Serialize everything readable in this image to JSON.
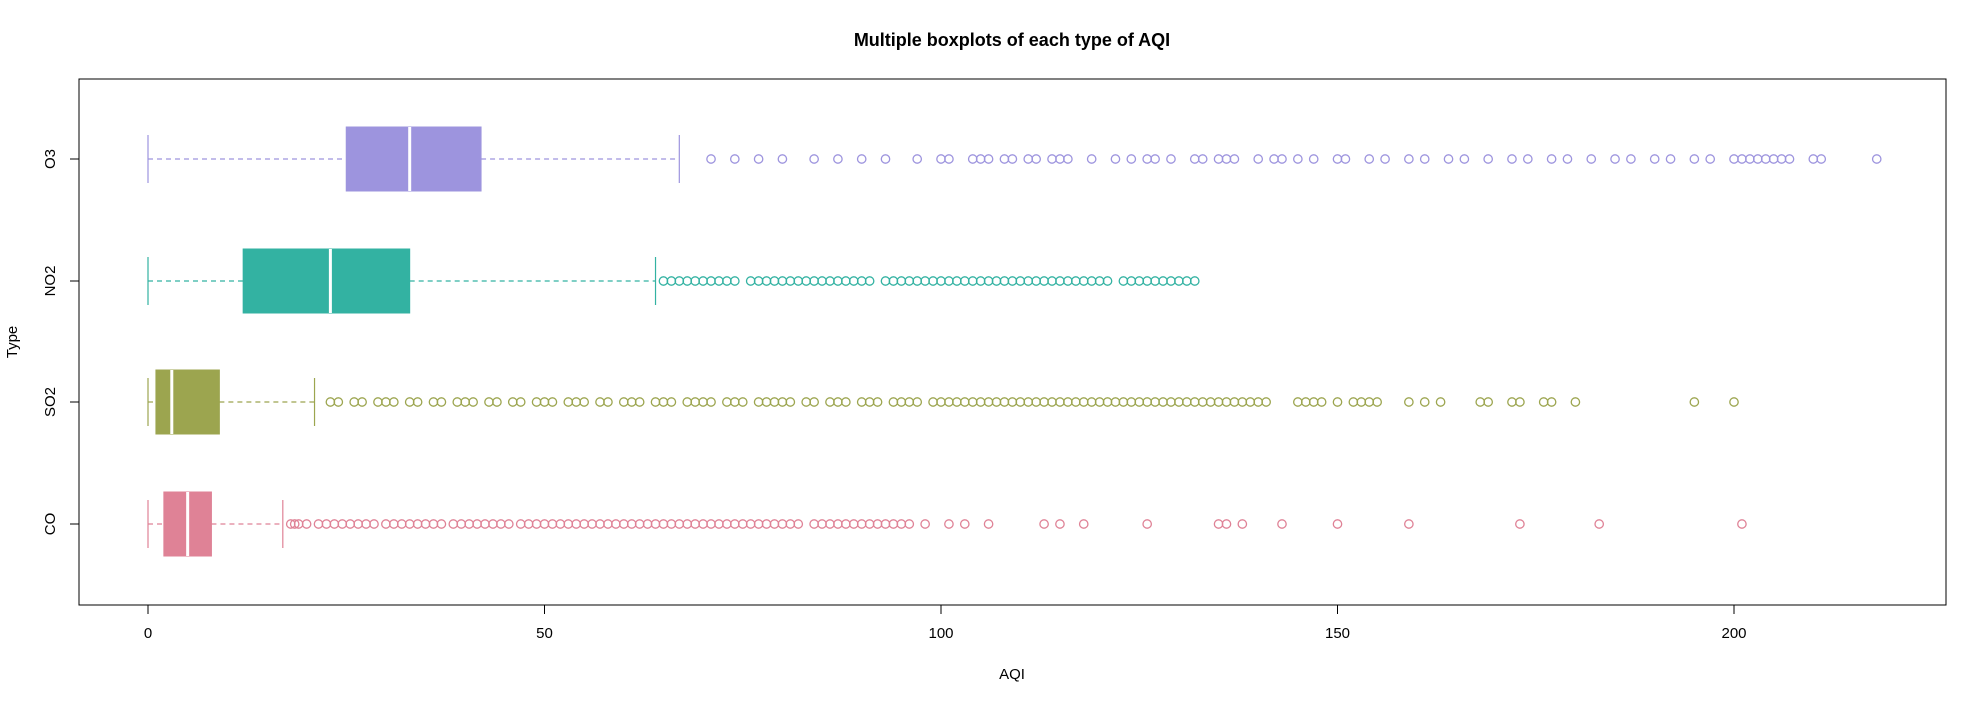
{
  "chart_data": {
    "type": "boxplot",
    "orientation": "horizontal",
    "title": "Multiple boxplots of each type of AQI",
    "xlabel": "AQI",
    "ylabel": "Type",
    "xlim": [
      -8.7,
      226.8
    ],
    "x_ticks": [
      0,
      50,
      100,
      150,
      200
    ],
    "grid": false,
    "categories": [
      "CO",
      "SO2",
      "NO2",
      "O3"
    ],
    "series": [
      {
        "name": "CO",
        "color": "#DF8296",
        "whisker_low": 0,
        "q1": 2,
        "median": 5,
        "q3": 8,
        "whisker_high": 17,
        "outliers": [
          18,
          18.5,
          19,
          20,
          21.5,
          22.5,
          23.5,
          24.5,
          25.5,
          26.5,
          27.5,
          28.5,
          30,
          31,
          32,
          33,
          34,
          35,
          36,
          37,
          38.5,
          39.5,
          40.5,
          41.5,
          42.5,
          43.5,
          44.5,
          45.5,
          47,
          48,
          49,
          50,
          51,
          52,
          53,
          54,
          55,
          56,
          57,
          58,
          59,
          60,
          61,
          62,
          63,
          64,
          65,
          66,
          67,
          68,
          69,
          70,
          71,
          72,
          73,
          74,
          75,
          76,
          77,
          78,
          79,
          80,
          81,
          82,
          84,
          85,
          86,
          87,
          88,
          89,
          90,
          91,
          92,
          93,
          94,
          95,
          96,
          98,
          101,
          103,
          106,
          113,
          115,
          118,
          126,
          135,
          136,
          138,
          143,
          150,
          159,
          173,
          183,
          201
        ]
      },
      {
        "name": "SO2",
        "color": "#9CA54F",
        "whisker_low": 0,
        "q1": 1,
        "median": 3,
        "q3": 9,
        "whisker_high": 21,
        "outliers": [
          23,
          24,
          26,
          27,
          29,
          30,
          31,
          33,
          34,
          36,
          37,
          39,
          40,
          41,
          43,
          44,
          46,
          47,
          49,
          50,
          51,
          53,
          54,
          55,
          57,
          58,
          60,
          61,
          62,
          64,
          65,
          66,
          68,
          69,
          70,
          71,
          73,
          74,
          75,
          77,
          78,
          79,
          80,
          81,
          83,
          84,
          86,
          87,
          88,
          90,
          91,
          92,
          94,
          95,
          96,
          97,
          99,
          100,
          101,
          102,
          103,
          104,
          105,
          106,
          107,
          108,
          109,
          110,
          111,
          112,
          113,
          114,
          115,
          116,
          117,
          118,
          119,
          120,
          121,
          122,
          123,
          124,
          125,
          126,
          127,
          128,
          129,
          130,
          131,
          132,
          133,
          134,
          135,
          136,
          137,
          138,
          139,
          140,
          141,
          145,
          146,
          147,
          148,
          150,
          152,
          153,
          154,
          155,
          159,
          161,
          163,
          168,
          169,
          172,
          173,
          176,
          177,
          180,
          195,
          200
        ]
      },
      {
        "name": "NO2",
        "color": "#33B2A2",
        "whisker_low": 0,
        "q1": 12,
        "median": 23,
        "q3": 33,
        "whisker_high": 64,
        "outliers": [
          65,
          66,
          67,
          68,
          69,
          70,
          71,
          72,
          73,
          74,
          76,
          77,
          78,
          79,
          80,
          81,
          82,
          83,
          84,
          85,
          86,
          87,
          88,
          89,
          90,
          91,
          93,
          94,
          95,
          96,
          97,
          98,
          99,
          100,
          101,
          102,
          103,
          104,
          105,
          106,
          107,
          108,
          109,
          110,
          111,
          112,
          113,
          114,
          115,
          116,
          117,
          118,
          119,
          120,
          121,
          123,
          124,
          125,
          126,
          127,
          128,
          129,
          130,
          131,
          132
        ]
      },
      {
        "name": "O3",
        "color": "#9D94DE",
        "whisker_low": 0,
        "q1": 25,
        "median": 33,
        "q3": 42,
        "whisker_high": 67,
        "outliers": [
          71,
          74,
          77,
          80,
          84,
          87,
          90,
          93,
          97,
          100,
          101,
          104,
          105,
          106,
          108,
          109,
          111,
          112,
          114,
          115,
          116,
          119,
          122,
          124,
          126,
          127,
          129,
          132,
          133,
          135,
          136,
          137,
          140,
          142,
          143,
          145,
          147,
          150,
          151,
          154,
          156,
          159,
          161,
          164,
          166,
          169,
          172,
          174,
          177,
          179,
          182,
          185,
          187,
          190,
          192,
          195,
          197,
          200,
          201,
          202,
          203,
          204,
          205,
          206,
          207,
          210,
          211,
          218
        ]
      }
    ]
  }
}
